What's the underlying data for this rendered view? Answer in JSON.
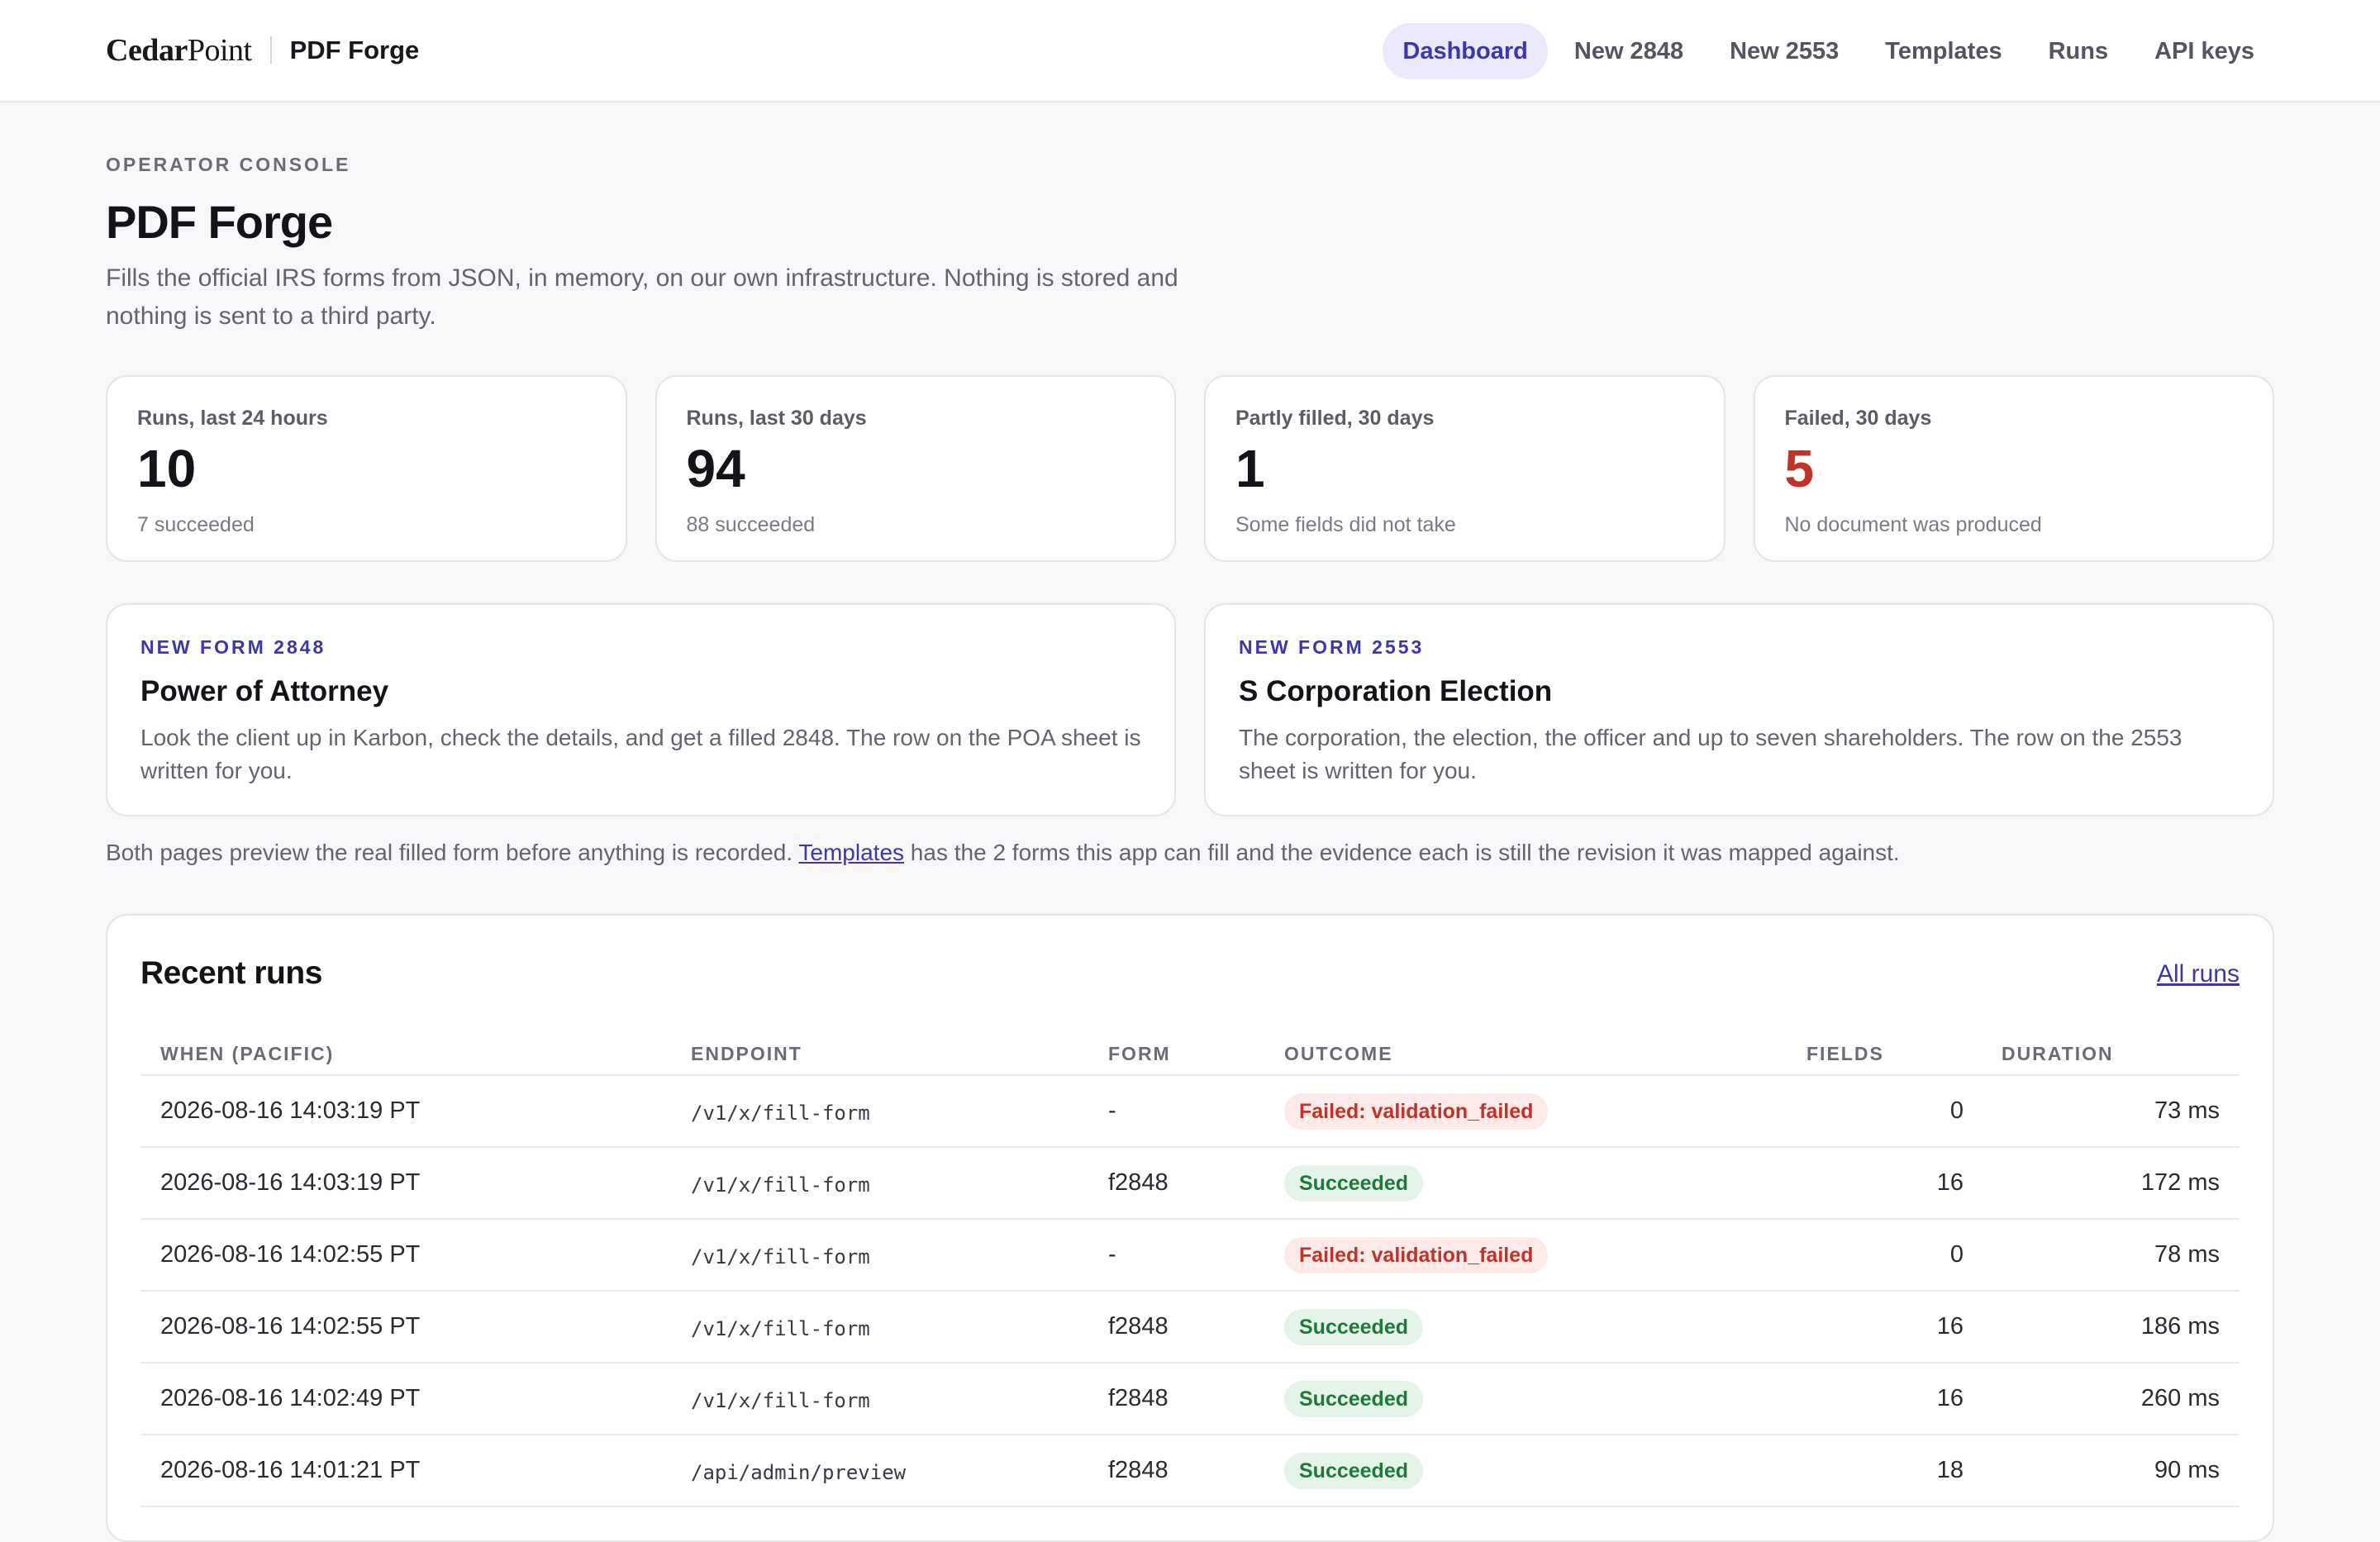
{
  "brand": {
    "logo_bold": "Cedar",
    "logo_rest": "Point",
    "app": "PDF Forge"
  },
  "nav": [
    {
      "label": "Dashboard",
      "active": true
    },
    {
      "label": "New 2848"
    },
    {
      "label": "New 2553"
    },
    {
      "label": "Templates"
    },
    {
      "label": "Runs"
    },
    {
      "label": "API keys"
    }
  ],
  "header": {
    "eyebrow": "OPERATOR CONSOLE",
    "title": "PDF Forge",
    "lede": "Fills the official IRS forms from JSON, in memory, on our own infrastructure. Nothing is stored and nothing is sent to a third party."
  },
  "stats": [
    {
      "label": "Runs, last 24 hours",
      "value": "10",
      "note": "7 succeeded"
    },
    {
      "label": "Runs, last 30 days",
      "value": "94",
      "note": "88 succeeded"
    },
    {
      "label": "Partly filled, 30 days",
      "value": "1",
      "note": "Some fields did not take"
    },
    {
      "label": "Failed, 30 days",
      "value": "5",
      "note": "No document was produced"
    }
  ],
  "actions": [
    {
      "eyebrow": "NEW FORM 2848",
      "title": "Power of Attorney",
      "desc": "Look the client up in Karbon, check the details, and get a filled 2848. The row on the POA sheet is written for you."
    },
    {
      "eyebrow": "NEW FORM 2553",
      "title": "S Corporation Election",
      "desc": "The corporation, the election, the officer and up to seven shareholders. The row on the 2553 sheet is written for you."
    }
  ],
  "info": {
    "before": "Both pages preview the real filled form before anything is recorded. ",
    "link": "Templates",
    "after": " has the 2 forms this app can fill and the evidence each is still the revision it was mapped against."
  },
  "runs": {
    "title": "Recent runs",
    "all_link": "All runs",
    "headers": {
      "when": "WHEN (PACIFIC)",
      "endpoint": "ENDPOINT",
      "form": "FORM",
      "outcome": "OUTCOME",
      "fields": "FIELDS",
      "duration": "DURATION"
    },
    "rows": [
      {
        "when": "2026-08-16 14:03:19 PT",
        "endpoint": "/v1/x/fill-form",
        "form": "-",
        "outcome": "Failed: validation_failed",
        "status": "fail",
        "fields": "0",
        "duration": "73 ms"
      },
      {
        "when": "2026-08-16 14:03:19 PT",
        "endpoint": "/v1/x/fill-form",
        "form": "f2848",
        "outcome": "Succeeded",
        "status": "ok",
        "fields": "16",
        "duration": "172 ms"
      },
      {
        "when": "2026-08-16 14:02:55 PT",
        "endpoint": "/v1/x/fill-form",
        "form": "-",
        "outcome": "Failed: validation_failed",
        "status": "fail",
        "fields": "0",
        "duration": "78 ms"
      },
      {
        "when": "2026-08-16 14:02:55 PT",
        "endpoint": "/v1/x/fill-form",
        "form": "f2848",
        "outcome": "Succeeded",
        "status": "ok",
        "fields": "16",
        "duration": "186 ms"
      },
      {
        "when": "2026-08-16 14:02:49 PT",
        "endpoint": "/v1/x/fill-form",
        "form": "f2848",
        "outcome": "Succeeded",
        "status": "ok",
        "fields": "16",
        "duration": "260 ms"
      },
      {
        "when": "2026-08-16 14:01:21 PT",
        "endpoint": "/api/admin/preview",
        "form": "f2848",
        "outcome": "Succeeded",
        "status": "ok",
        "fields": "18",
        "duration": "90 ms"
      }
    ]
  }
}
